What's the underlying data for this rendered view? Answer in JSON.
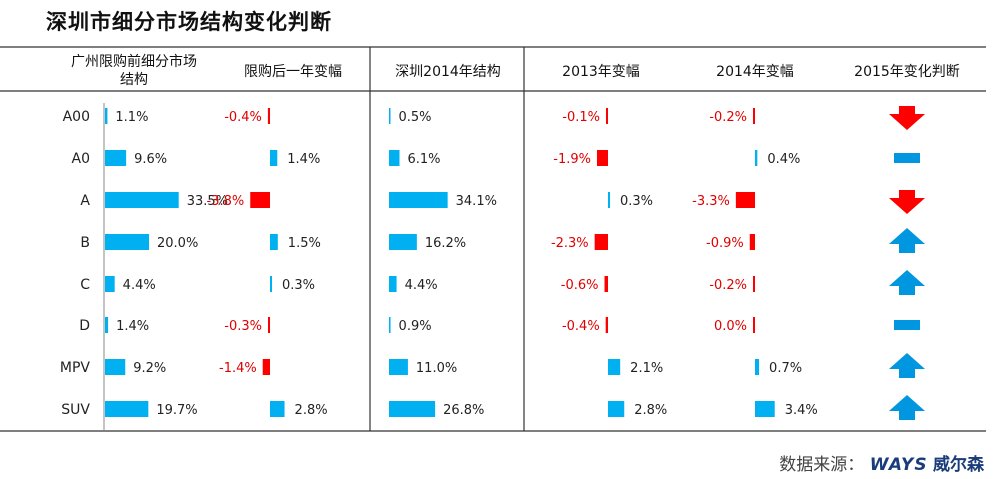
{
  "title": "深圳市细分市场结构变化判断",
  "source": {
    "label": "数据来源：",
    "brand": "WAYS",
    "brand_cn": "威尔森"
  },
  "colors": {
    "positive": "#00b0f0",
    "negative": "#ff0000",
    "text_negative": "#e00000",
    "line": "#333333"
  },
  "chart_data": {
    "type": "table",
    "categories": [
      "A00",
      "A0",
      "A",
      "B",
      "C",
      "D",
      "MPV",
      "SUV"
    ],
    "columns": [
      {
        "header": [
          "广州限购前细分市场",
          "结构"
        ],
        "kind": "bar",
        "values": [
          1.1,
          9.6,
          33.5,
          20.0,
          4.4,
          1.4,
          9.2,
          19.7
        ],
        "labels": [
          "1.1%",
          "9.6%",
          "33.5%",
          "20.0%",
          "4.4%",
          "1.4%",
          "9.2%",
          "19.7%"
        ]
      },
      {
        "header": [
          "限购后一年变幅"
        ],
        "kind": "diverging",
        "values": [
          -0.4,
          1.4,
          -3.8,
          1.5,
          0.3,
          -0.3,
          -1.4,
          2.8
        ],
        "labels": [
          "-0.4%",
          "1.4%",
          "-3.8%",
          "1.5%",
          "0.3%",
          "-0.3%",
          "-1.4%",
          "2.8%"
        ]
      },
      {
        "header": [
          "深圳2014年结构"
        ],
        "kind": "bar",
        "values": [
          0.5,
          6.1,
          34.1,
          16.2,
          4.4,
          0.9,
          11.0,
          26.8
        ],
        "labels": [
          "0.5%",
          "6.1%",
          "34.1%",
          "16.2%",
          "4.4%",
          "0.9%",
          "11.0%",
          "26.8%"
        ]
      },
      {
        "header": [
          "2013年变幅"
        ],
        "kind": "diverging",
        "values": [
          -0.1,
          -1.9,
          0.3,
          -2.3,
          -0.6,
          -0.4,
          2.1,
          2.8
        ],
        "labels": [
          "-0.1%",
          "-1.9%",
          "0.3%",
          "-2.3%",
          "-0.6%",
          "-0.4%",
          "2.1%",
          "2.8%"
        ]
      },
      {
        "header": [
          "2014年变幅"
        ],
        "kind": "diverging",
        "values": [
          -0.2,
          0.4,
          -3.3,
          -0.9,
          -0.2,
          0.0,
          0.7,
          3.4
        ],
        "labels": [
          "-0.2%",
          "0.4%",
          "-3.3%",
          "-0.9%",
          "-0.2%",
          "0.0%",
          "0.7%",
          "3.4%"
        ]
      },
      {
        "header": [
          "2015年变化判断"
        ],
        "kind": "trend",
        "values": [
          "down",
          "flat",
          "down",
          "up",
          "up",
          "flat",
          "up",
          "up"
        ]
      }
    ]
  }
}
